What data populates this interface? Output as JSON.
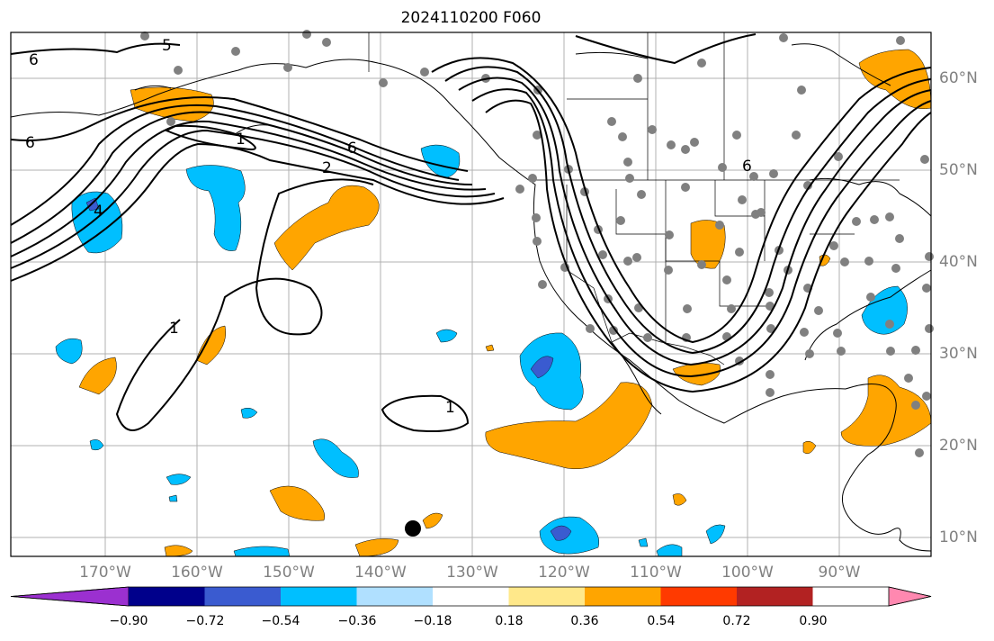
{
  "title": "2024110200 F060",
  "lat_labels": [
    "60°N",
    "50°N",
    "40°N",
    "30°N",
    "20°N",
    "10°N"
  ],
  "lon_labels": [
    "170°W",
    "160°W",
    "150°W",
    "140°W",
    "130°W",
    "120°W",
    "110°W",
    "100°W",
    "90°W"
  ],
  "colorbar": {
    "ticks": [
      "−0.90",
      "−0.72",
      "−0.54",
      "−0.36",
      "−0.18",
      "0.18",
      "0.36",
      "0.54",
      "0.72",
      "0.90"
    ],
    "colors": [
      "#9b30d0",
      "#00008b",
      "#3a5bd0",
      "#00bfff",
      "#b0e0ff",
      "#ffffff",
      "#ffe88a",
      "#ffa500",
      "#ff3a00",
      "#b22222",
      "#ff88b0"
    ]
  },
  "contour_labels": [
    "5",
    "6",
    "6",
    "1",
    "2",
    "6",
    "4",
    "1",
    "1",
    "6"
  ],
  "colors": {
    "blue_fill": "#00bfff",
    "dark_blue_fill": "#3a5bd0",
    "orange_fill": "#ffa500",
    "station_dot": "#808080",
    "grid": "#b0b0b0"
  }
}
